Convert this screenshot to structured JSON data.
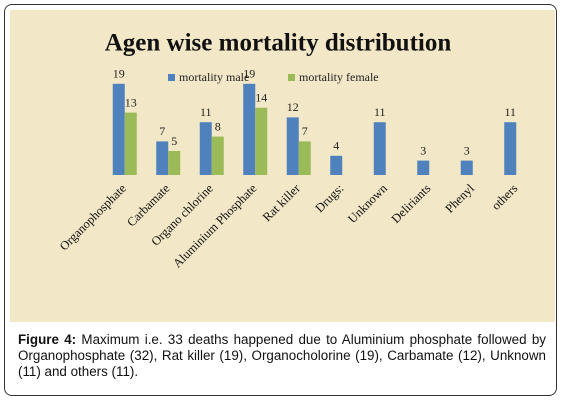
{
  "chart_data": {
    "type": "bar",
    "title": "Agen wise mortality distribution",
    "categories": [
      "Organophosphate",
      "Carbamate",
      "Organo chlorine",
      "Aluminium Phosphate",
      "Rat killer",
      "Drugs:",
      "Unknown",
      "Deliriants",
      "Phenyl",
      "others"
    ],
    "series": [
      {
        "name": "mortality male",
        "color": "#4f81bd",
        "values": [
          19,
          7,
          11,
          19,
          12,
          4,
          11,
          3,
          3,
          11
        ]
      },
      {
        "name": "mortality female",
        "color": "#9bbb59",
        "values": [
          13,
          5,
          8,
          14,
          7,
          null,
          null,
          null,
          null,
          null
        ]
      }
    ],
    "ylim": [
      0,
      20
    ],
    "legend": "top"
  },
  "caption": {
    "label": "Figure 4:",
    "text": "Maximum i.e. 33 deaths happened due to Aluminium phosphate followed by Organophosphate (32), Rat killer (19), Organocholorine (19), Carbamate (12), Unknown (11) and others (11)."
  }
}
